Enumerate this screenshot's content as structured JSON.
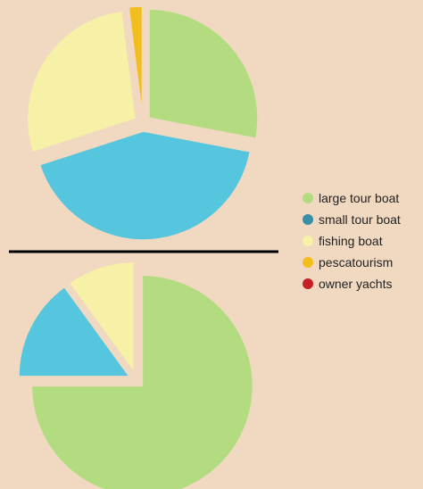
{
  "chart_data": {
    "type": "pie",
    "colors": {
      "background": "#f1d9c1",
      "large tour boat": "#b2dc7f",
      "small tour boat": "#56c6de",
      "fishing boat": "#f6f1a6",
      "pescatourism": "#f2be1d",
      "owner yachts": "#c62026",
      "legend small tour boat": "#3a8fa8",
      "divider": "#000000"
    },
    "legend": {
      "placement": "right",
      "entries": [
        {
          "label": "large tour boat",
          "color_key": "large tour boat"
        },
        {
          "label": "small tour boat",
          "color_key": "legend small tour boat"
        },
        {
          "label": "fishing boat",
          "color_key": "fishing boat"
        },
        {
          "label": "pescatourism",
          "color_key": "pescatourism"
        },
        {
          "label": "owner yachts",
          "color_key": "owner yachts"
        }
      ]
    },
    "charts": [
      {
        "type": "pie",
        "start_angle_deg": 0,
        "direction": "clockwise",
        "exploded": true,
        "slices": [
          {
            "label": "large tour boat",
            "value": 28
          },
          {
            "label": "small tour boat",
            "value": 42
          },
          {
            "label": "fishing boat",
            "value": 28
          },
          {
            "label": "pescatourism",
            "value": 2
          }
        ]
      },
      {
        "type": "pie",
        "start_angle_deg": 0,
        "direction": "clockwise",
        "exploded": true,
        "slices": [
          {
            "label": "large tour boat",
            "value": 75
          },
          {
            "label": "small tour boat",
            "value": 15
          },
          {
            "label": "fishing boat",
            "value": 10
          }
        ]
      }
    ]
  }
}
